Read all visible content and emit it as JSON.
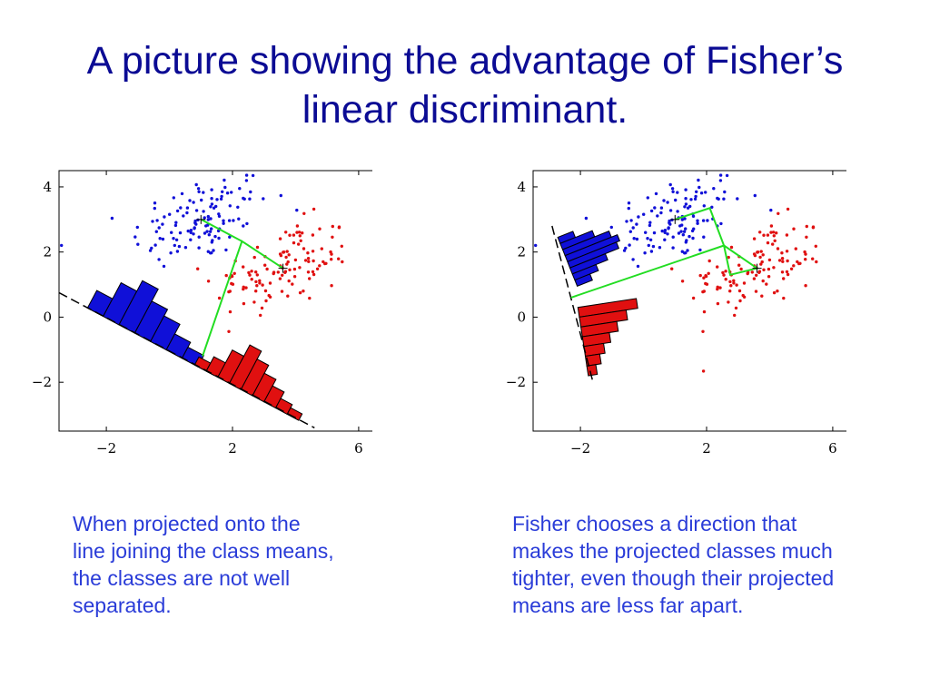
{
  "title": {
    "line1": "A picture showing the advantage of Fisher’s",
    "line2": "linear discriminant."
  },
  "captions": {
    "left": [
      "When projected onto the",
      "line joining the class means,",
      "the classes are not well",
      "separated."
    ],
    "right": [
      "Fisher chooses a direction that",
      "makes the projected classes much",
      "tighter, even though their projected",
      "means are less far apart."
    ]
  },
  "colors": {
    "class1": "#1010d8",
    "class2": "#e01010",
    "projection": "#22dd22",
    "title": "#0b0b94",
    "caption": "#2a3cd8"
  },
  "chart_data": [
    {
      "type": "scatter",
      "title": "",
      "xlabel": "",
      "ylabel": "",
      "xlim": [
        -3.5,
        7.5
      ],
      "ylim": [
        -3.5,
        4.5
      ],
      "xticks": [
        -2,
        2,
        6
      ],
      "yticks": [
        -2,
        0,
        2,
        4
      ],
      "xtick_labels": [
        "−2",
        "2",
        "6"
      ],
      "ytick_labels": [
        "−2",
        "0",
        "2",
        "4"
      ],
      "grid": false,
      "series": [
        {
          "class": "class1",
          "mean": [
            1,
            3
          ],
          "cov": [
            [
              1.2,
              0.3
            ],
            [
              0.3,
              0.5
            ]
          ],
          "n": 120
        },
        {
          "class": "class2",
          "mean": [
            3.6,
            1.5
          ],
          "cov": [
            [
              1.2,
              0.3
            ],
            [
              0.3,
              0.5
            ]
          ],
          "n": 120
        }
      ],
      "projection_line": {
        "from": [
          -3.5,
          0.75
        ],
        "to": [
          4.6,
          -3.4
        ]
      },
      "histogram_1": {
        "from": [
          -2.6,
          0.28
        ],
        "to": [
          1.4,
          -1.78
        ],
        "heights": [
          0.22,
          0.42,
          0.55,
          0.4,
          0.32,
          0.2,
          0.14,
          0.08
        ]
      },
      "histogram_2": {
        "from": [
          0.8,
          -1.47
        ],
        "to": [
          4.1,
          -3.17
        ],
        "heights": [
          0.1,
          0.18,
          0.34,
          0.48,
          0.38,
          0.28,
          0.2,
          0.12,
          0.08
        ]
      },
      "mean_projection": [
        [
          1,
          3
        ],
        [
          2.3,
          2.33
        ],
        [
          3.6,
          1.5
        ],
        [
          2.3,
          2.33
        ],
        [
          1.05,
          -1.2
        ]
      ]
    },
    {
      "type": "scatter",
      "title": "",
      "xlabel": "",
      "ylabel": "",
      "xlim": [
        -3.5,
        7.5
      ],
      "ylim": [
        -3.5,
        4.5
      ],
      "xticks": [
        -2,
        2,
        6
      ],
      "yticks": [
        -2,
        0,
        2,
        4
      ],
      "xtick_labels": [
        "−2",
        "2",
        "6"
      ],
      "ytick_labels": [
        "−2",
        "0",
        "2",
        "4"
      ],
      "grid": false,
      "series": [
        {
          "class": "class1",
          "mean": [
            1,
            3
          ],
          "cov": [
            [
              1.2,
              0.3
            ],
            [
              0.3,
              0.5
            ]
          ],
          "n": 120
        },
        {
          "class": "class2",
          "mean": [
            3.6,
            1.5
          ],
          "cov": [
            [
              1.2,
              0.3
            ],
            [
              0.3,
              0.5
            ]
          ],
          "n": 120
        }
      ],
      "projection_line": {
        "from": [
          -2.9,
          2.8
        ],
        "to": [
          -1.6,
          -2.0
        ]
      },
      "histogram_1": {
        "from": [
          -2.72,
          2.45
        ],
        "to": [
          -2.1,
          0.95
        ],
        "heights": [
          0.18,
          0.38,
          0.55,
          0.62,
          0.58,
          0.42,
          0.28,
          0.18
        ]
      },
      "histogram_2": {
        "from": [
          -2.08,
          0.3
        ],
        "to": [
          -1.75,
          -1.8
        ],
        "heights": [
          0.65,
          0.52,
          0.4,
          0.3,
          0.22,
          0.16,
          0.1
        ]
      },
      "mean_projection": [
        [
          1,
          3
        ],
        [
          2.1,
          3.35
        ],
        [
          2.55,
          2.2
        ],
        [
          2.75,
          1.3
        ],
        [
          3.6,
          1.5
        ],
        [
          2.55,
          2.2
        ],
        [
          -2.3,
          0.6
        ]
      ]
    }
  ]
}
